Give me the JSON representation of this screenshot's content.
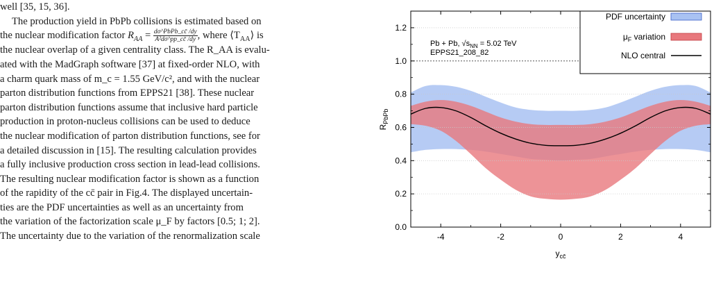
{
  "paper": {
    "line0": "well [35, 15, 36].",
    "l1_a": "The production yield in PbPb collisions is estimated based on",
    "l2_a": "the nuclear modification factor",
    "l2_eq": "R",
    "l2_eq_sub": "AA",
    "l2_frac_num": "dσ^PbPb_cc̄ /dy",
    "l2_frac_den": "A²dσ^pp_cc̄ /dy",
    "l2_b": ", where ⟨T",
    "l2_b_sub": "AA",
    "l2_c": "⟩ is",
    "l3": "the nuclear overlap of a given centrality class. The R_AA is evalu-",
    "l4": "ated with the MadGraph software [37] at fixed-order NLO, with",
    "l5": "a charm quark mass of m_c = 1.55 GeV/c², and with the nuclear",
    "l6": "parton distribution functions from EPPS21 [38]. These nuclear",
    "l7": "parton distribution functions assume that inclusive hard particle",
    "l8": "production in proton-nucleus collisions can be used to deduce",
    "l9": "the nuclear modification of parton distribution functions, see for",
    "l10": "a detailed discussion in [15]. The resulting calculation provides",
    "l11": "a fully inclusive production cross section in lead-lead collisions.",
    "l12": "The resulting nuclear modification factor is shown as a function",
    "l13": "of the rapidity of the cc̄ pair in Fig.4. The displayed uncertain-",
    "l14": "ties are the PDF uncertainties as well as an uncertainty from",
    "l15": "the variation of the factorization scale μ_F by factors [0.5; 1; 2].",
    "l16": "The uncertainty due to the variation of the renormalization scale"
  },
  "chart_data": {
    "type": "area",
    "xlabel": "y_cc̄",
    "ylabel": "R_PbPb",
    "xlim": [
      -5,
      5
    ],
    "ylim": [
      0,
      1.3
    ],
    "x_ticks": [
      -4,
      -2,
      0,
      2,
      4
    ],
    "x_tick_labels": [
      "-4",
      "-2",
      "0",
      "2",
      "4"
    ],
    "y_ticks": [
      0,
      0.2,
      0.4,
      0.6,
      0.8,
      1.0,
      1.2
    ],
    "y_tick_labels": [
      "0.0",
      "0.2",
      "0.4",
      "0.6",
      "0.8",
      "1.0",
      "1.2"
    ],
    "reference_line": 1.0,
    "grid": "horizontal dotted",
    "legend_placement": "top-right",
    "annotation_line1": "Pb + Pb, √s_NN = 5.02 TeV",
    "annotation_line2": "EPPS21_208_82",
    "x": [
      -5,
      -4.5,
      -4,
      -3.5,
      -3,
      -2.5,
      -2,
      -1.5,
      -1,
      -0.5,
      0,
      0.5,
      1,
      1.5,
      2,
      2.5,
      3,
      3.5,
      4,
      4.5,
      5
    ],
    "series": [
      {
        "name": "PDF uncertainty",
        "color": "#a9c2f2",
        "upper": [
          0.81,
          0.85,
          0.855,
          0.845,
          0.82,
          0.785,
          0.75,
          0.72,
          0.705,
          0.7,
          0.7,
          0.7,
          0.705,
          0.72,
          0.75,
          0.785,
          0.82,
          0.845,
          0.855,
          0.85,
          0.81
        ],
        "lower": [
          0.45,
          0.465,
          0.47,
          0.47,
          0.465,
          0.455,
          0.44,
          0.425,
          0.41,
          0.405,
          0.4,
          0.405,
          0.41,
          0.425,
          0.44,
          0.455,
          0.465,
          0.47,
          0.47,
          0.465,
          0.45
        ]
      },
      {
        "name": "μF variation",
        "color": "#e8787d",
        "upper": [
          0.73,
          0.755,
          0.765,
          0.755,
          0.73,
          0.695,
          0.66,
          0.635,
          0.62,
          0.615,
          0.615,
          0.615,
          0.62,
          0.635,
          0.66,
          0.695,
          0.73,
          0.755,
          0.765,
          0.755,
          0.73
        ],
        "lower": [
          0.62,
          0.61,
          0.58,
          0.52,
          0.44,
          0.355,
          0.285,
          0.225,
          0.185,
          0.17,
          0.165,
          0.17,
          0.185,
          0.225,
          0.285,
          0.355,
          0.44,
          0.52,
          0.58,
          0.61,
          0.62
        ]
      },
      {
        "name": "NLO central",
        "color": "#000000",
        "values": [
          0.68,
          0.715,
          0.72,
          0.7,
          0.66,
          0.61,
          0.565,
          0.53,
          0.505,
          0.492,
          0.49,
          0.492,
          0.505,
          0.53,
          0.565,
          0.61,
          0.66,
          0.7,
          0.72,
          0.715,
          0.68
        ]
      }
    ]
  }
}
